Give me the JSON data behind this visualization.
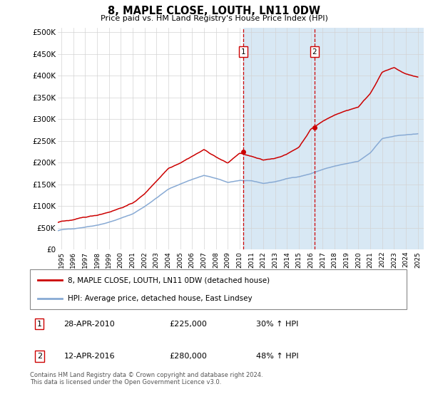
{
  "title": "8, MAPLE CLOSE, LOUTH, LN11 0DW",
  "subtitle": "Price paid vs. HM Land Registry's House Price Index (HPI)",
  "ylabel_ticks": [
    "£0",
    "£50K",
    "£100K",
    "£150K",
    "£200K",
    "£250K",
    "£300K",
    "£350K",
    "£400K",
    "£450K",
    "£500K"
  ],
  "ytick_values": [
    0,
    50000,
    100000,
    150000,
    200000,
    250000,
    300000,
    350000,
    400000,
    450000,
    500000
  ],
  "ylim": [
    0,
    510000
  ],
  "xlim_start": 1994.7,
  "xlim_end": 2025.5,
  "hpi_color": "#88aad4",
  "price_color": "#cc0000",
  "annotation_box_color": "#cc0000",
  "shaded_color": "#d8e8f4",
  "marker1_x": 2010.32,
  "marker2_x": 2016.29,
  "marker1_label": "1",
  "marker2_label": "2",
  "marker1_date": "28-APR-2010",
  "marker1_price": "£225,000",
  "marker1_hpi": "30% ↑ HPI",
  "marker2_date": "12-APR-2016",
  "marker2_price": "£280,000",
  "marker2_hpi": "48% ↑ HPI",
  "legend_line1": "8, MAPLE CLOSE, LOUTH, LN11 0DW (detached house)",
  "legend_line2": "HPI: Average price, detached house, East Lindsey",
  "footer": "Contains HM Land Registry data © Crown copyright and database right 2024.\nThis data is licensed under the Open Government Licence v3.0.",
  "xtick_years": [
    1995,
    1996,
    1997,
    1998,
    1999,
    2000,
    2001,
    2002,
    2003,
    2004,
    2005,
    2006,
    2007,
    2008,
    2009,
    2010,
    2011,
    2012,
    2013,
    2014,
    2015,
    2016,
    2017,
    2018,
    2019,
    2020,
    2021,
    2022,
    2023,
    2024,
    2025
  ],
  "hpi_base": [
    [
      1994.7,
      43000
    ],
    [
      1995,
      45000
    ],
    [
      1996,
      47500
    ],
    [
      1997,
      52000
    ],
    [
      1998,
      57000
    ],
    [
      1999,
      64000
    ],
    [
      2000,
      73000
    ],
    [
      2001,
      83000
    ],
    [
      2002,
      100000
    ],
    [
      2003,
      120000
    ],
    [
      2004,
      140000
    ],
    [
      2005,
      152000
    ],
    [
      2006,
      163000
    ],
    [
      2007,
      172000
    ],
    [
      2008,
      165000
    ],
    [
      2009,
      155000
    ],
    [
      2010,
      160000
    ],
    [
      2011,
      158000
    ],
    [
      2012,
      152000
    ],
    [
      2013,
      156000
    ],
    [
      2014,
      163000
    ],
    [
      2015,
      168000
    ],
    [
      2016,
      175000
    ],
    [
      2017,
      185000
    ],
    [
      2018,
      192000
    ],
    [
      2019,
      197000
    ],
    [
      2020,
      202000
    ],
    [
      2021,
      222000
    ],
    [
      2022,
      255000
    ],
    [
      2023,
      260000
    ],
    [
      2024,
      263000
    ],
    [
      2025,
      265000
    ]
  ],
  "price_base": [
    [
      1994.7,
      62000
    ],
    [
      1995,
      65000
    ],
    [
      1996,
      68000
    ],
    [
      1997,
      73000
    ],
    [
      1998,
      78000
    ],
    [
      1999,
      86000
    ],
    [
      2000,
      96000
    ],
    [
      2001,
      107000
    ],
    [
      2002,
      128000
    ],
    [
      2003,
      158000
    ],
    [
      2004,
      188000
    ],
    [
      2005,
      202000
    ],
    [
      2006,
      218000
    ],
    [
      2007,
      233000
    ],
    [
      2008,
      217000
    ],
    [
      2009,
      202000
    ],
    [
      2010,
      225000
    ],
    [
      2011,
      217000
    ],
    [
      2012,
      207000
    ],
    [
      2013,
      212000
    ],
    [
      2014,
      222000
    ],
    [
      2015,
      238000
    ],
    [
      2016,
      280000
    ],
    [
      2017,
      298000
    ],
    [
      2018,
      313000
    ],
    [
      2019,
      323000
    ],
    [
      2020,
      332000
    ],
    [
      2021,
      363000
    ],
    [
      2022,
      413000
    ],
    [
      2023,
      422000
    ],
    [
      2024,
      407000
    ],
    [
      2025,
      400000
    ]
  ],
  "hpi_noise_scale": 600,
  "price_noise_scale": 900,
  "noise_seed": 42
}
